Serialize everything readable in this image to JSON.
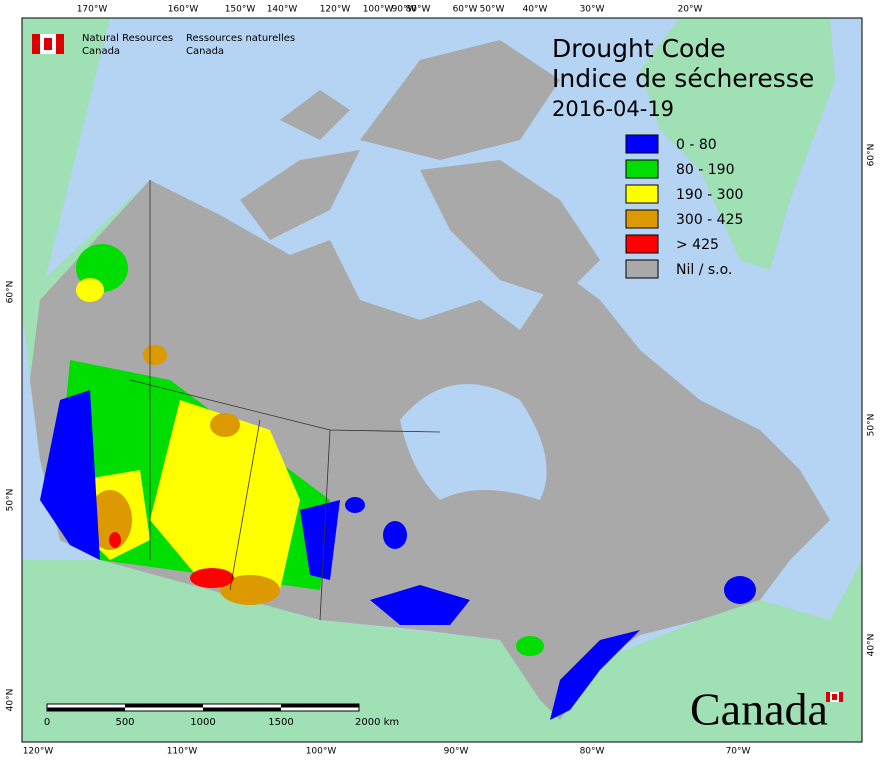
{
  "header": {
    "agency_en": [
      "Natural Resources",
      "Canada"
    ],
    "agency_fr": [
      "Ressources naturelles",
      "Canada"
    ]
  },
  "title": {
    "line1": "Drought Code",
    "line2": "Indice de sécheresse",
    "date": "2016-04-19"
  },
  "legend": [
    {
      "label": "0 - 80",
      "color": "#0000ff"
    },
    {
      "label": "80 - 190",
      "color": "#00dd00"
    },
    {
      "label": "190 - 300",
      "color": "#ffff00"
    },
    {
      "label": "300 - 425",
      "color": "#dd9900"
    },
    {
      "label": "> 425",
      "color": "#ff0000"
    },
    {
      "label": "Nil / s.o.",
      "color": "#a9a9a9"
    }
  ],
  "graticule": {
    "top": [
      "170°W",
      "160°W",
      "150°W",
      "140°W",
      "120°W",
      "100°W",
      "90°W",
      "80°W",
      "60°W",
      "50°W",
      "40°W",
      "30°W",
      "20°W"
    ],
    "bottom": [
      "120°W",
      "110°W",
      "100°W",
      "90°W",
      "80°W",
      "70°W"
    ],
    "left": [
      "60°N",
      "50°N",
      "40°N"
    ],
    "right": [
      "60°N",
      "50°N",
      "40°N"
    ]
  },
  "scale_bar": [
    "0",
    "500",
    "1000",
    "1500",
    "2000 km"
  ],
  "wordmark": "Canada"
}
